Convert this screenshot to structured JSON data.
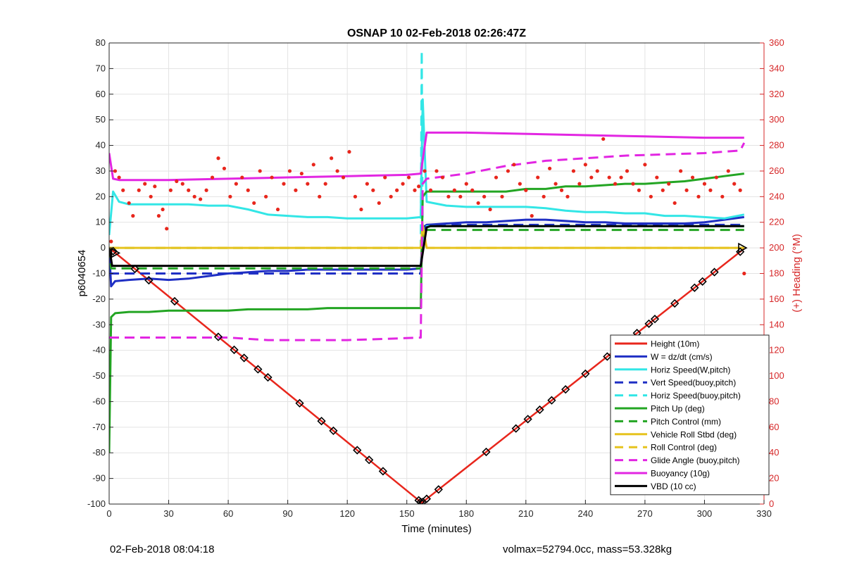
{
  "footer": {
    "left": "02-Feb-2018 08:04:18",
    "right": "volmax=52794.0cc, mass=53.328kg"
  },
  "chart_data": {
    "type": "line",
    "title": "OSNAP 10 02-Feb-2018 02:26:47Z",
    "xlabel": "Time (minutes)",
    "ylabel": "p6040654",
    "y2label": "(+) Heading (°M)",
    "xlim": [
      0,
      330
    ],
    "ylim": [
      -100,
      80
    ],
    "y2lim": [
      0,
      360
    ],
    "xticks": [
      0,
      30,
      60,
      90,
      120,
      150,
      180,
      210,
      240,
      270,
      300,
      330
    ],
    "yticks": [
      -100,
      -90,
      -80,
      -70,
      -60,
      -50,
      -40,
      -30,
      -20,
      -10,
      0,
      10,
      20,
      30,
      40,
      50,
      60,
      70,
      80
    ],
    "y2ticks": [
      0,
      20,
      40,
      60,
      80,
      100,
      120,
      140,
      160,
      180,
      200,
      220,
      240,
      260,
      280,
      300,
      320,
      340,
      360
    ],
    "grid": true,
    "legend_position": "bottom-right",
    "colors": {
      "axis_right": "#d62728"
    },
    "series": [
      {
        "name": "Height (10m)",
        "color": "#e8261c",
        "style": "solid",
        "x": [
          0,
          157.5,
          320
        ],
        "y": [
          0,
          -99.5,
          -0.3
        ]
      },
      {
        "name": "W = dz/dt (cm/s)",
        "color": "#1f2fc4",
        "style": "solid",
        "x": [
          0,
          1,
          3,
          10,
          20,
          30,
          40,
          50,
          60,
          70,
          80,
          90,
          100,
          110,
          120,
          130,
          140,
          150,
          157,
          158,
          160,
          170,
          180,
          190,
          200,
          210,
          220,
          230,
          240,
          250,
          260,
          270,
          280,
          290,
          300,
          310,
          320
        ],
        "y": [
          0,
          -15,
          -13,
          -12.5,
          -12,
          -12.5,
          -12,
          -11,
          -10,
          -9.5,
          -9,
          -9,
          -8.5,
          -8.5,
          -8.5,
          -8.5,
          -8.5,
          -8.5,
          -8,
          5,
          9,
          9.5,
          10,
          10,
          10.5,
          11,
          11,
          10.5,
          10,
          10,
          9.5,
          9.5,
          9.5,
          9.5,
          10,
          11,
          12
        ]
      },
      {
        "name": "Horiz Speed(W,pitch)",
        "color": "#33e6e6",
        "style": "solid",
        "x": [
          0,
          2,
          5,
          10,
          20,
          30,
          40,
          50,
          60,
          70,
          80,
          90,
          100,
          110,
          120,
          130,
          140,
          150,
          157,
          158,
          160,
          170,
          180,
          190,
          200,
          210,
          220,
          230,
          240,
          250,
          260,
          270,
          280,
          290,
          300,
          310,
          320
        ],
        "y": [
          5,
          22,
          18,
          17,
          17,
          17,
          17,
          16.5,
          16.5,
          15,
          13,
          12.5,
          12,
          12,
          11.5,
          11.5,
          11.5,
          11.5,
          12,
          58,
          18,
          16.5,
          16,
          16,
          16,
          16,
          15.5,
          14.5,
          14,
          14,
          13.5,
          13.5,
          12.5,
          12.5,
          12,
          11.5,
          13
        ]
      },
      {
        "name": "Vert Speed(buoy,pitch)",
        "color": "#1f2fc4",
        "style": "dashed",
        "x": [
          0,
          157,
          158,
          160,
          320
        ],
        "y": [
          -10,
          -10,
          8,
          9,
          9
        ]
      },
      {
        "name": "Horiz Speed(buoy,pitch)",
        "color": "#33e6e6",
        "style": "dashed",
        "x": [
          0,
          157,
          157.5,
          158,
          160,
          320
        ],
        "y": [
          0,
          0,
          77,
          0,
          8.5,
          8.5
        ]
      },
      {
        "name": "Pitch Up (deg)",
        "color": "#23a523",
        "style": "solid",
        "x": [
          0,
          1,
          3,
          10,
          20,
          30,
          40,
          50,
          60,
          70,
          80,
          90,
          100,
          110,
          120,
          130,
          140,
          150,
          157,
          158,
          160,
          170,
          180,
          190,
          200,
          210,
          220,
          230,
          240,
          250,
          260,
          270,
          280,
          290,
          300,
          310,
          320
        ],
        "y": [
          -80,
          -27,
          -25.5,
          -25,
          -25,
          -24.5,
          -24.5,
          -24.5,
          -24.5,
          -24,
          -24,
          -24,
          -24,
          -23.5,
          -23.5,
          -23.5,
          -23.5,
          -23.5,
          -23.5,
          20,
          22,
          22,
          22,
          22,
          22,
          23,
          23,
          24,
          24,
          24.5,
          25,
          25,
          25.5,
          26,
          27,
          28,
          29
        ]
      },
      {
        "name": "Pitch Control (mm)",
        "color": "#23a523",
        "style": "dashed",
        "x": [
          0,
          1,
          157,
          158,
          320
        ],
        "y": [
          0,
          -8,
          -8,
          7,
          7
        ]
      },
      {
        "name": "Vehicle Roll Stbd (deg)",
        "color": "#e6c31e",
        "style": "solid",
        "x": [
          0,
          157,
          158,
          160,
          320
        ],
        "y": [
          0,
          0,
          9,
          0,
          0
        ]
      },
      {
        "name": "Roll Control (deg)",
        "color": "#e6c31e",
        "style": "dashed",
        "x": [
          0,
          157,
          158,
          160,
          320
        ],
        "y": [
          0,
          0,
          9,
          0,
          0
        ]
      },
      {
        "name": "Glide Angle (buoy,pitch)",
        "color": "#e226e2",
        "style": "dashed",
        "x": [
          0,
          20,
          40,
          60,
          80,
          100,
          120,
          140,
          157,
          158,
          160,
          180,
          200,
          220,
          240,
          260,
          280,
          300,
          318,
          320
        ],
        "y": [
          -35,
          -35,
          -35,
          -35,
          -36,
          -36,
          -36,
          -35.5,
          -35,
          25,
          27,
          29,
          32,
          34,
          35,
          36,
          36.5,
          37,
          38,
          41
        ]
      },
      {
        "name": "Buoyancy (10g)",
        "color": "#e226e2",
        "style": "solid",
        "x": [
          0,
          2,
          5,
          30,
          60,
          90,
          120,
          150,
          157,
          160,
          165,
          180,
          240,
          270,
          300,
          320
        ],
        "y": [
          37,
          27,
          26.5,
          26.5,
          27,
          27.5,
          28,
          28.5,
          29,
          45,
          45,
          45,
          44,
          43.5,
          43,
          43
        ]
      },
      {
        "name": "VBD (10 cc)",
        "color": "#000000",
        "style": "solid",
        "x": [
          0,
          0.5,
          1.5,
          3,
          157,
          160,
          162,
          320
        ],
        "y": [
          0,
          -2,
          -7,
          -7,
          -7,
          8,
          8.5,
          8.5
        ]
      }
    ],
    "heading_points": {
      "name": "Heading",
      "color": "#e8261c",
      "axis": "right",
      "x": [
        1,
        3,
        5,
        7,
        10,
        12,
        15,
        18,
        21,
        23,
        25,
        27,
        29,
        31,
        34,
        37,
        40,
        43,
        46,
        49,
        52,
        55,
        58,
        61,
        64,
        67,
        70,
        73,
        76,
        79,
        82,
        85,
        88,
        91,
        94,
        97,
        100,
        103,
        106,
        109,
        112,
        115,
        118,
        121,
        124,
        127,
        130,
        133,
        136,
        139,
        142,
        145,
        148,
        151,
        154,
        156,
        159,
        162,
        165,
        168,
        171,
        174,
        177,
        180,
        183,
        186,
        189,
        192,
        195,
        198,
        201,
        204,
        207,
        210,
        213,
        216,
        219,
        222,
        225,
        228,
        231,
        234,
        237,
        240,
        243,
        246,
        249,
        252,
        255,
        258,
        261,
        264,
        267,
        270,
        273,
        276,
        279,
        282,
        285,
        288,
        291,
        294,
        297,
        300,
        303,
        306,
        309,
        312,
        315,
        318,
        320
      ],
      "y": [
        205,
        260,
        255,
        245,
        235,
        225,
        245,
        250,
        240,
        248,
        225,
        230,
        215,
        245,
        252,
        250,
        245,
        240,
        238,
        245,
        255,
        270,
        262,
        240,
        250,
        255,
        245,
        235,
        260,
        240,
        255,
        230,
        250,
        260,
        245,
        258,
        250,
        265,
        240,
        250,
        270,
        260,
        255,
        275,
        240,
        230,
        250,
        245,
        235,
        255,
        240,
        245,
        250,
        255,
        245,
        248,
        260,
        245,
        260,
        255,
        240,
        245,
        240,
        250,
        245,
        235,
        240,
        230,
        255,
        240,
        260,
        265,
        250,
        245,
        225,
        255,
        240,
        262,
        250,
        245,
        240,
        260,
        250,
        265,
        255,
        260,
        285,
        255,
        250,
        255,
        260,
        250,
        245,
        265,
        240,
        255,
        245,
        250,
        235,
        260,
        245,
        255,
        240,
        250,
        245,
        255,
        240,
        260,
        250,
        245,
        180
      ]
    },
    "height_markers_x": [
      2,
      13,
      20,
      33,
      55,
      63,
      68,
      75,
      80,
      96,
      107,
      113,
      125,
      131,
      138,
      156,
      157,
      158,
      160,
      166,
      190,
      205,
      211,
      217,
      223,
      230,
      240,
      251,
      266,
      272,
      275,
      285,
      295,
      299,
      305,
      318
    ]
  }
}
